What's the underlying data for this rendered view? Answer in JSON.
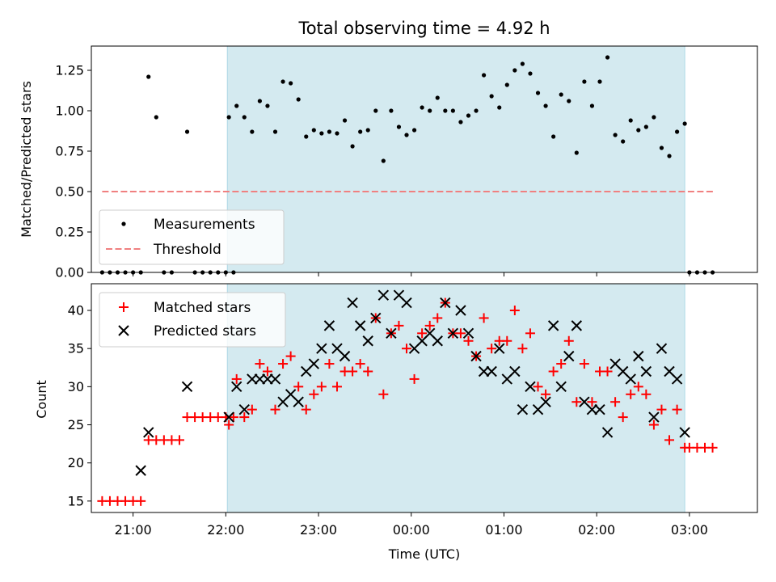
{
  "chart_data": [
    {
      "type": "scatter",
      "title": "Total observing time = 4.92 h",
      "xlabel": "",
      "ylabel": "Matched/Predicted stars",
      "ylim": [
        0,
        1.4
      ],
      "xlim": [
        "20:33",
        "03:44"
      ],
      "y_ticks": [
        "0.00",
        "0.25",
        "0.50",
        "0.75",
        "1.00",
        "1.25"
      ],
      "y_tick_values": [
        0,
        0.25,
        0.5,
        0.75,
        1.0,
        1.25
      ],
      "shaded_interval": [
        "22:01",
        "02:57"
      ],
      "shade_color": "#d4eaf0",
      "legend": {
        "position": "lower-left",
        "entries": [
          "Measurements",
          "Threshold"
        ]
      },
      "threshold": {
        "name": "Threshold",
        "value": 0.5,
        "x_range": [
          "20:40",
          "03:17"
        ],
        "color": "#f08080",
        "style": "dashed"
      },
      "series": [
        {
          "name": "Measurements",
          "color": "#000000",
          "marker": "dot",
          "points": [
            [
              "20:40",
              0.0
            ],
            [
              "20:45",
              0.0
            ],
            [
              "20:50",
              0.0
            ],
            [
              "20:55",
              0.0
            ],
            [
              "21:00",
              0.0
            ],
            [
              "21:05",
              0.0
            ],
            [
              "21:10",
              1.21
            ],
            [
              "21:15",
              0.96
            ],
            [
              "21:20",
              0.0
            ],
            [
              "21:25",
              0.0
            ],
            [
              "21:35",
              0.87
            ],
            [
              "21:40",
              0.0
            ],
            [
              "21:45",
              0.0
            ],
            [
              "21:50",
              0.0
            ],
            [
              "21:55",
              0.0
            ],
            [
              "22:00",
              0.0
            ],
            [
              "22:05",
              0.0
            ],
            [
              "22:02",
              0.96
            ],
            [
              "22:07",
              1.03
            ],
            [
              "22:12",
              0.96
            ],
            [
              "22:17",
              0.87
            ],
            [
              "22:22",
              1.06
            ],
            [
              "22:27",
              1.03
            ],
            [
              "22:32",
              0.87
            ],
            [
              "22:37",
              1.18
            ],
            [
              "22:42",
              1.17
            ],
            [
              "22:47",
              1.07
            ],
            [
              "22:52",
              0.84
            ],
            [
              "22:57",
              0.88
            ],
            [
              "23:02",
              0.86
            ],
            [
              "23:07",
              0.87
            ],
            [
              "23:12",
              0.86
            ],
            [
              "23:17",
              0.94
            ],
            [
              "23:22",
              0.78
            ],
            [
              "23:27",
              0.87
            ],
            [
              "23:32",
              0.88
            ],
            [
              "23:37",
              1.0
            ],
            [
              "23:42",
              0.69
            ],
            [
              "23:47",
              1.0
            ],
            [
              "23:52",
              0.9
            ],
            [
              "23:57",
              0.85
            ],
            [
              "00:02",
              0.88
            ],
            [
              "00:07",
              1.02
            ],
            [
              "00:12",
              1.0
            ],
            [
              "00:17",
              1.08
            ],
            [
              "00:22",
              1.0
            ],
            [
              "00:27",
              1.0
            ],
            [
              "00:32",
              0.93
            ],
            [
              "00:37",
              0.97
            ],
            [
              "00:42",
              1.0
            ],
            [
              "00:47",
              1.22
            ],
            [
              "00:52",
              1.09
            ],
            [
              "00:57",
              1.02
            ],
            [
              "01:02",
              1.16
            ],
            [
              "01:07",
              1.25
            ],
            [
              "01:12",
              1.29
            ],
            [
              "01:17",
              1.23
            ],
            [
              "01:22",
              1.11
            ],
            [
              "01:27",
              1.03
            ],
            [
              "01:32",
              0.84
            ],
            [
              "01:37",
              1.1
            ],
            [
              "01:42",
              1.06
            ],
            [
              "01:47",
              0.74
            ],
            [
              "01:52",
              1.18
            ],
            [
              "01:57",
              1.03
            ],
            [
              "02:02",
              1.18
            ],
            [
              "02:07",
              1.33
            ],
            [
              "02:12",
              0.85
            ],
            [
              "02:17",
              0.81
            ],
            [
              "02:22",
              0.94
            ],
            [
              "02:27",
              0.88
            ],
            [
              "02:32",
              0.9
            ],
            [
              "02:37",
              0.96
            ],
            [
              "02:42",
              0.77
            ],
            [
              "02:47",
              0.72
            ],
            [
              "02:52",
              0.87
            ],
            [
              "02:57",
              0.92
            ],
            [
              "03:00",
              0.0
            ],
            [
              "03:05",
              0.0
            ],
            [
              "03:10",
              0.0
            ],
            [
              "03:15",
              0.0
            ]
          ]
        }
      ]
    },
    {
      "type": "scatter",
      "title": "",
      "xlabel": "Time (UTC)",
      "ylabel": "Count",
      "ylim": [
        13.5,
        43.5
      ],
      "xlim": [
        "20:33",
        "03:44"
      ],
      "x_ticks": [
        "21:00",
        "22:00",
        "23:00",
        "00:00",
        "01:00",
        "02:00",
        "03:00"
      ],
      "y_ticks": [
        "15",
        "20",
        "25",
        "30",
        "35",
        "40"
      ],
      "y_tick_values": [
        15,
        20,
        25,
        30,
        35,
        40
      ],
      "shaded_interval": [
        "22:01",
        "02:57"
      ],
      "shade_color": "#d4eaf0",
      "legend": {
        "position": "upper-left",
        "entries": [
          "Matched stars",
          "Predicted stars"
        ]
      },
      "series": [
        {
          "name": "Matched stars",
          "color": "#ff0000",
          "marker": "plus",
          "points": [
            [
              "20:40",
              15
            ],
            [
              "20:45",
              15
            ],
            [
              "20:50",
              15
            ],
            [
              "20:55",
              15
            ],
            [
              "21:00",
              15
            ],
            [
              "21:05",
              15
            ],
            [
              "21:10",
              23
            ],
            [
              "21:15",
              23
            ],
            [
              "21:20",
              23
            ],
            [
              "21:25",
              23
            ],
            [
              "21:30",
              23
            ],
            [
              "21:35",
              26
            ],
            [
              "21:40",
              26
            ],
            [
              "21:45",
              26
            ],
            [
              "21:50",
              26
            ],
            [
              "21:55",
              26
            ],
            [
              "22:00",
              26
            ],
            [
              "22:05",
              26
            ],
            [
              "22:02",
              25
            ],
            [
              "22:07",
              31
            ],
            [
              "22:12",
              26
            ],
            [
              "22:17",
              27
            ],
            [
              "22:22",
              33
            ],
            [
              "22:27",
              32
            ],
            [
              "22:32",
              27
            ],
            [
              "22:37",
              33
            ],
            [
              "22:42",
              34
            ],
            [
              "22:47",
              30
            ],
            [
              "22:52",
              27
            ],
            [
              "22:57",
              29
            ],
            [
              "23:02",
              30
            ],
            [
              "23:07",
              33
            ],
            [
              "23:12",
              30
            ],
            [
              "23:17",
              32
            ],
            [
              "23:22",
              32
            ],
            [
              "23:27",
              33
            ],
            [
              "23:32",
              32
            ],
            [
              "23:37",
              39
            ],
            [
              "23:42",
              29
            ],
            [
              "23:47",
              37
            ],
            [
              "23:52",
              38
            ],
            [
              "23:57",
              35
            ],
            [
              "00:02",
              31
            ],
            [
              "00:07",
              37
            ],
            [
              "00:12",
              38
            ],
            [
              "00:17",
              39
            ],
            [
              "00:22",
              41
            ],
            [
              "00:27",
              37
            ],
            [
              "00:32",
              37
            ],
            [
              "00:37",
              36
            ],
            [
              "00:42",
              34
            ],
            [
              "00:47",
              39
            ],
            [
              "00:52",
              35
            ],
            [
              "00:57",
              36
            ],
            [
              "01:02",
              36
            ],
            [
              "01:07",
              40
            ],
            [
              "01:12",
              35
            ],
            [
              "01:17",
              37
            ],
            [
              "01:22",
              30
            ],
            [
              "01:27",
              29
            ],
            [
              "01:32",
              32
            ],
            [
              "01:37",
              33
            ],
            [
              "01:42",
              36
            ],
            [
              "01:47",
              28
            ],
            [
              "01:52",
              33
            ],
            [
              "01:57",
              28
            ],
            [
              "02:02",
              32
            ],
            [
              "02:07",
              32
            ],
            [
              "02:12",
              28
            ],
            [
              "02:17",
              26
            ],
            [
              "02:22",
              29
            ],
            [
              "02:27",
              30
            ],
            [
              "02:32",
              29
            ],
            [
              "02:37",
              25
            ],
            [
              "02:42",
              27
            ],
            [
              "02:47",
              23
            ],
            [
              "02:52",
              27
            ],
            [
              "02:57",
              22
            ],
            [
              "03:00",
              22
            ],
            [
              "03:05",
              22
            ],
            [
              "03:10",
              22
            ],
            [
              "03:15",
              22
            ]
          ]
        },
        {
          "name": "Predicted stars",
          "color": "#000000",
          "marker": "x",
          "points": [
            [
              "21:05",
              19
            ],
            [
              "21:10",
              24
            ],
            [
              "21:35",
              30
            ],
            [
              "22:02",
              26
            ],
            [
              "22:07",
              30
            ],
            [
              "22:12",
              27
            ],
            [
              "22:17",
              31
            ],
            [
              "22:22",
              31
            ],
            [
              "22:27",
              31
            ],
            [
              "22:32",
              31
            ],
            [
              "22:37",
              28
            ],
            [
              "22:42",
              29
            ],
            [
              "22:47",
              28
            ],
            [
              "22:52",
              32
            ],
            [
              "22:57",
              33
            ],
            [
              "23:02",
              35
            ],
            [
              "23:07",
              38
            ],
            [
              "23:12",
              35
            ],
            [
              "23:17",
              34
            ],
            [
              "23:22",
              41
            ],
            [
              "23:27",
              38
            ],
            [
              "23:32",
              36
            ],
            [
              "23:37",
              39
            ],
            [
              "23:42",
              42
            ],
            [
              "23:47",
              37
            ],
            [
              "23:52",
              42
            ],
            [
              "23:57",
              41
            ],
            [
              "00:02",
              35
            ],
            [
              "00:07",
              36
            ],
            [
              "00:12",
              37
            ],
            [
              "00:17",
              36
            ],
            [
              "00:22",
              41
            ],
            [
              "00:27",
              37
            ],
            [
              "00:32",
              40
            ],
            [
              "00:37",
              37
            ],
            [
              "00:42",
              34
            ],
            [
              "00:47",
              32
            ],
            [
              "00:52",
              32
            ],
            [
              "00:57",
              35
            ],
            [
              "01:02",
              31
            ],
            [
              "01:07",
              32
            ],
            [
              "01:12",
              27
            ],
            [
              "01:17",
              30
            ],
            [
              "01:22",
              27
            ],
            [
              "01:27",
              28
            ],
            [
              "01:32",
              38
            ],
            [
              "01:37",
              30
            ],
            [
              "01:42",
              34
            ],
            [
              "01:47",
              38
            ],
            [
              "01:52",
              28
            ],
            [
              "01:57",
              27
            ],
            [
              "02:02",
              27
            ],
            [
              "02:07",
              24
            ],
            [
              "02:12",
              33
            ],
            [
              "02:17",
              32
            ],
            [
              "02:22",
              31
            ],
            [
              "02:27",
              34
            ],
            [
              "02:32",
              32
            ],
            [
              "02:37",
              26
            ],
            [
              "02:42",
              35
            ],
            [
              "02:47",
              32
            ],
            [
              "02:52",
              31
            ],
            [
              "02:57",
              24
            ]
          ]
        }
      ]
    }
  ]
}
